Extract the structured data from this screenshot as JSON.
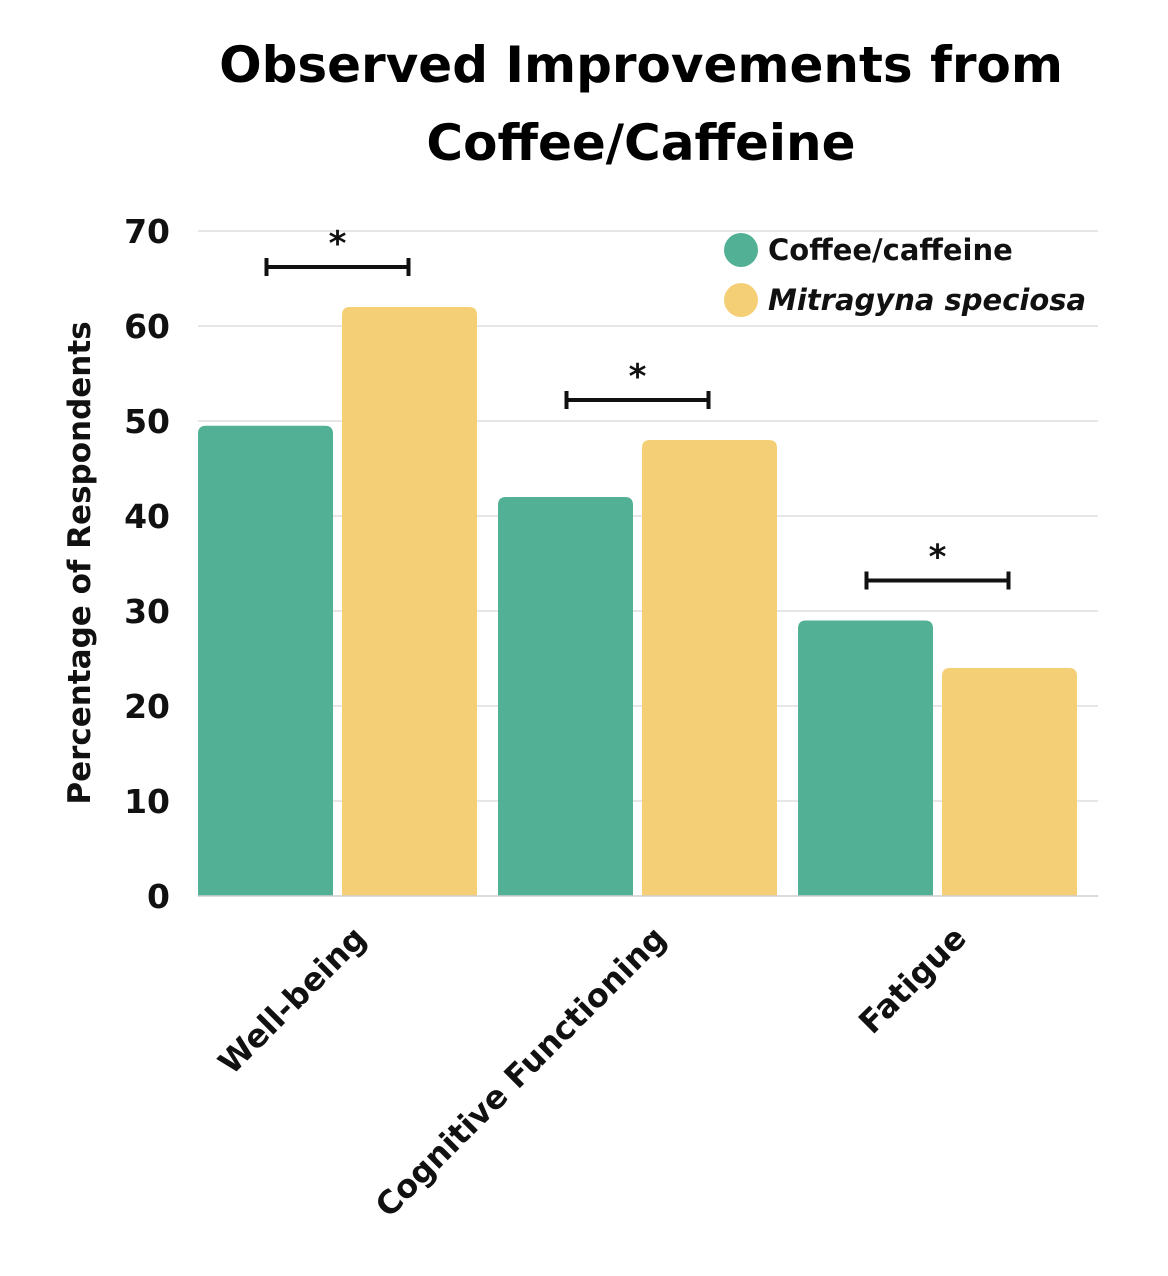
{
  "chart_data": {
    "type": "bar",
    "title_lines": [
      "Observed Improvements from",
      "Coffee/Caffeine"
    ],
    "ylabel": "Percentage of Respondents",
    "xlabel": "",
    "ylim": [
      0,
      70
    ],
    "yticks": [
      0,
      10,
      20,
      30,
      40,
      50,
      60,
      70
    ],
    "grid": true,
    "legend_position": "top-right",
    "categories": [
      "Well-being",
      "Cognitive Functioning",
      "Fatigue"
    ],
    "series": [
      {
        "name": "Coffee/caffeine",
        "italic": false,
        "color": "#52b194",
        "values": [
          49.5,
          42,
          29
        ]
      },
      {
        "name": "Mitragyna speciosa",
        "italic": true,
        "color": "#f4cf76",
        "values": [
          62,
          48,
          24
        ]
      }
    ],
    "significance_marker": "*",
    "significant": [
      true,
      true,
      true
    ]
  }
}
